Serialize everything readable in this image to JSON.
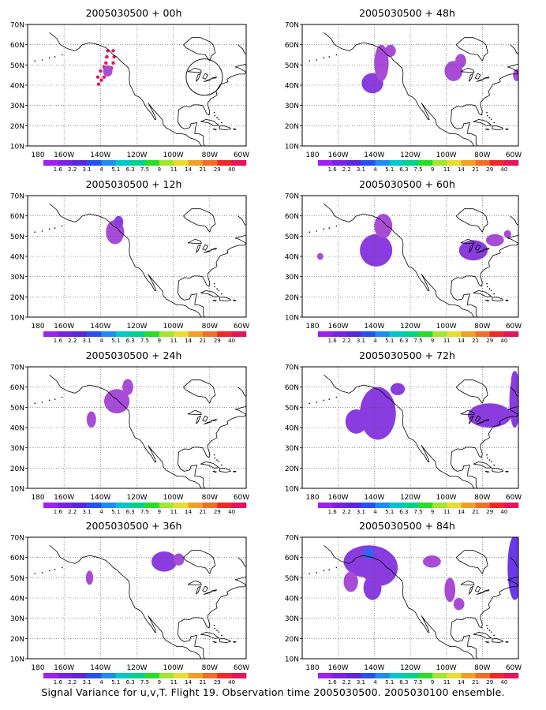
{
  "figure": {
    "caption": "Signal Variance for u,v,T. Flight 19. Observation time 2005030500. 2005030100 ensemble."
  },
  "axes": {
    "lat_labels": [
      "70N",
      "60N",
      "50N",
      "40N",
      "30N",
      "20N",
      "10N"
    ],
    "lon_labels": [
      "180",
      "160W",
      "140W",
      "120W",
      "100W",
      "80W",
      "60W"
    ]
  },
  "colorbar": {
    "labels": [
      "1.6",
      "2.2",
      "3.1",
      "4",
      "5.1",
      "6.3",
      "7.5",
      "9",
      "11",
      "14",
      "21",
      "29",
      "40"
    ],
    "colors": [
      "#a020f0",
      "#7b22e0",
      "#5a28d8",
      "#2850f0",
      "#1e8cf0",
      "#00c8c8",
      "#00d28c",
      "#28dc28",
      "#a0e632",
      "#e6dc32",
      "#f0a028",
      "#f06e28",
      "#f02828",
      "#e6145a"
    ]
  },
  "colors": {
    "low": "#a84cd8",
    "mid": "#8a3ce0",
    "high": "#6a3ae8",
    "peak": "#3a62f0",
    "obs": "#e8145a"
  },
  "panels": [
    {
      "title": "2005030500 + 00h"
    },
    {
      "title": "2005030500 + 48h"
    },
    {
      "title": "2005030500 + 12h"
    },
    {
      "title": "2005030500 + 60h"
    },
    {
      "title": "2005030500 + 24h"
    },
    {
      "title": "2005030500 + 72h"
    },
    {
      "title": "2005030500 + 36h"
    },
    {
      "title": "2005030500 + 84h"
    }
  ]
}
